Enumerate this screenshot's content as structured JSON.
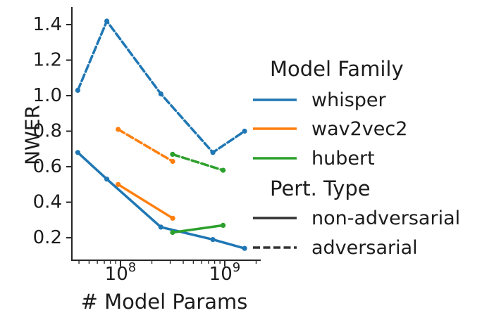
{
  "chart_data": {
    "type": "line",
    "title": "",
    "xlabel": "# Model Params",
    "ylabel": "NWER",
    "x_scale": "log10",
    "xlim_log10": [
      7.534,
      9.345
    ],
    "ylim": [
      0.0735,
      1.499
    ],
    "grid": false,
    "legend_position": "right",
    "y_ticks": [
      {
        "v": 0.2,
        "label": "0.2"
      },
      {
        "v": 0.4,
        "label": "0.4"
      },
      {
        "v": 0.6,
        "label": "0.6"
      },
      {
        "v": 0.8,
        "label": "0.8"
      },
      {
        "v": 1.0,
        "label": "1.0"
      },
      {
        "v": 1.2,
        "label": "1.2"
      },
      {
        "v": 1.4,
        "label": "1.4"
      }
    ],
    "x_major_ticks": [
      {
        "v": 100000000.0,
        "base": "10",
        "exp": "8"
      },
      {
        "v": 1000000000.0,
        "base": "10",
        "exp": "9"
      }
    ],
    "x_minor_ticks": [
      40000000.0,
      50000000.0,
      60000000.0,
      70000000.0,
      80000000.0,
      90000000.0,
      200000000.0,
      300000000.0,
      400000000.0,
      500000000.0,
      600000000.0,
      700000000.0,
      800000000.0,
      900000000.0,
      2000000000.0
    ],
    "series": [
      {
        "family": "whisper",
        "pert": "non-adversarial",
        "color": "#1f77b4",
        "dashed": false,
        "x": [
          39000000.0,
          74000000.0,
          244000000.0,
          769000000.0,
          1550000000.0
        ],
        "y": [
          0.68,
          0.53,
          0.26,
          0.19,
          0.14
        ]
      },
      {
        "family": "whisper",
        "pert": "adversarial",
        "color": "#1f77b4",
        "dashed": true,
        "x": [
          39000000.0,
          74000000.0,
          244000000.0,
          769000000.0,
          1550000000.0
        ],
        "y": [
          1.03,
          1.42,
          1.01,
          0.68,
          0.8
        ]
      },
      {
        "family": "wav2vec2",
        "pert": "non-adversarial",
        "color": "#ff7f0e",
        "dashed": false,
        "x": [
          95000000.0,
          317000000.0
        ],
        "y": [
          0.5,
          0.31
        ]
      },
      {
        "family": "wav2vec2",
        "pert": "adversarial",
        "color": "#ff7f0e",
        "dashed": true,
        "x": [
          95000000.0,
          317000000.0
        ],
        "y": [
          0.81,
          0.63
        ]
      },
      {
        "family": "hubert",
        "pert": "non-adversarial",
        "color": "#2ca02c",
        "dashed": false,
        "x": [
          316000000.0,
          964000000.0
        ],
        "y": [
          0.23,
          0.27
        ]
      },
      {
        "family": "hubert",
        "pert": "adversarial",
        "color": "#2ca02c",
        "dashed": true,
        "x": [
          316000000.0,
          964000000.0
        ],
        "y": [
          0.67,
          0.58
        ]
      }
    ]
  },
  "axes": {
    "xlabel": "# Model Params",
    "ylabel": "NWER"
  },
  "legend": {
    "sections": [
      {
        "title": "Model Family",
        "items": [
          {
            "label": "whisper",
            "color": "#1f77b4",
            "dashed": false
          },
          {
            "label": "wav2vec2",
            "color": "#ff7f0e",
            "dashed": false
          },
          {
            "label": "hubert",
            "color": "#2ca02c",
            "dashed": false
          }
        ]
      },
      {
        "title": "Pert. Type",
        "items": [
          {
            "label": "non-adversarial",
            "color": "#333333",
            "dashed": false
          },
          {
            "label": "adversarial",
            "color": "#333333",
            "dashed": true
          }
        ]
      }
    ]
  }
}
